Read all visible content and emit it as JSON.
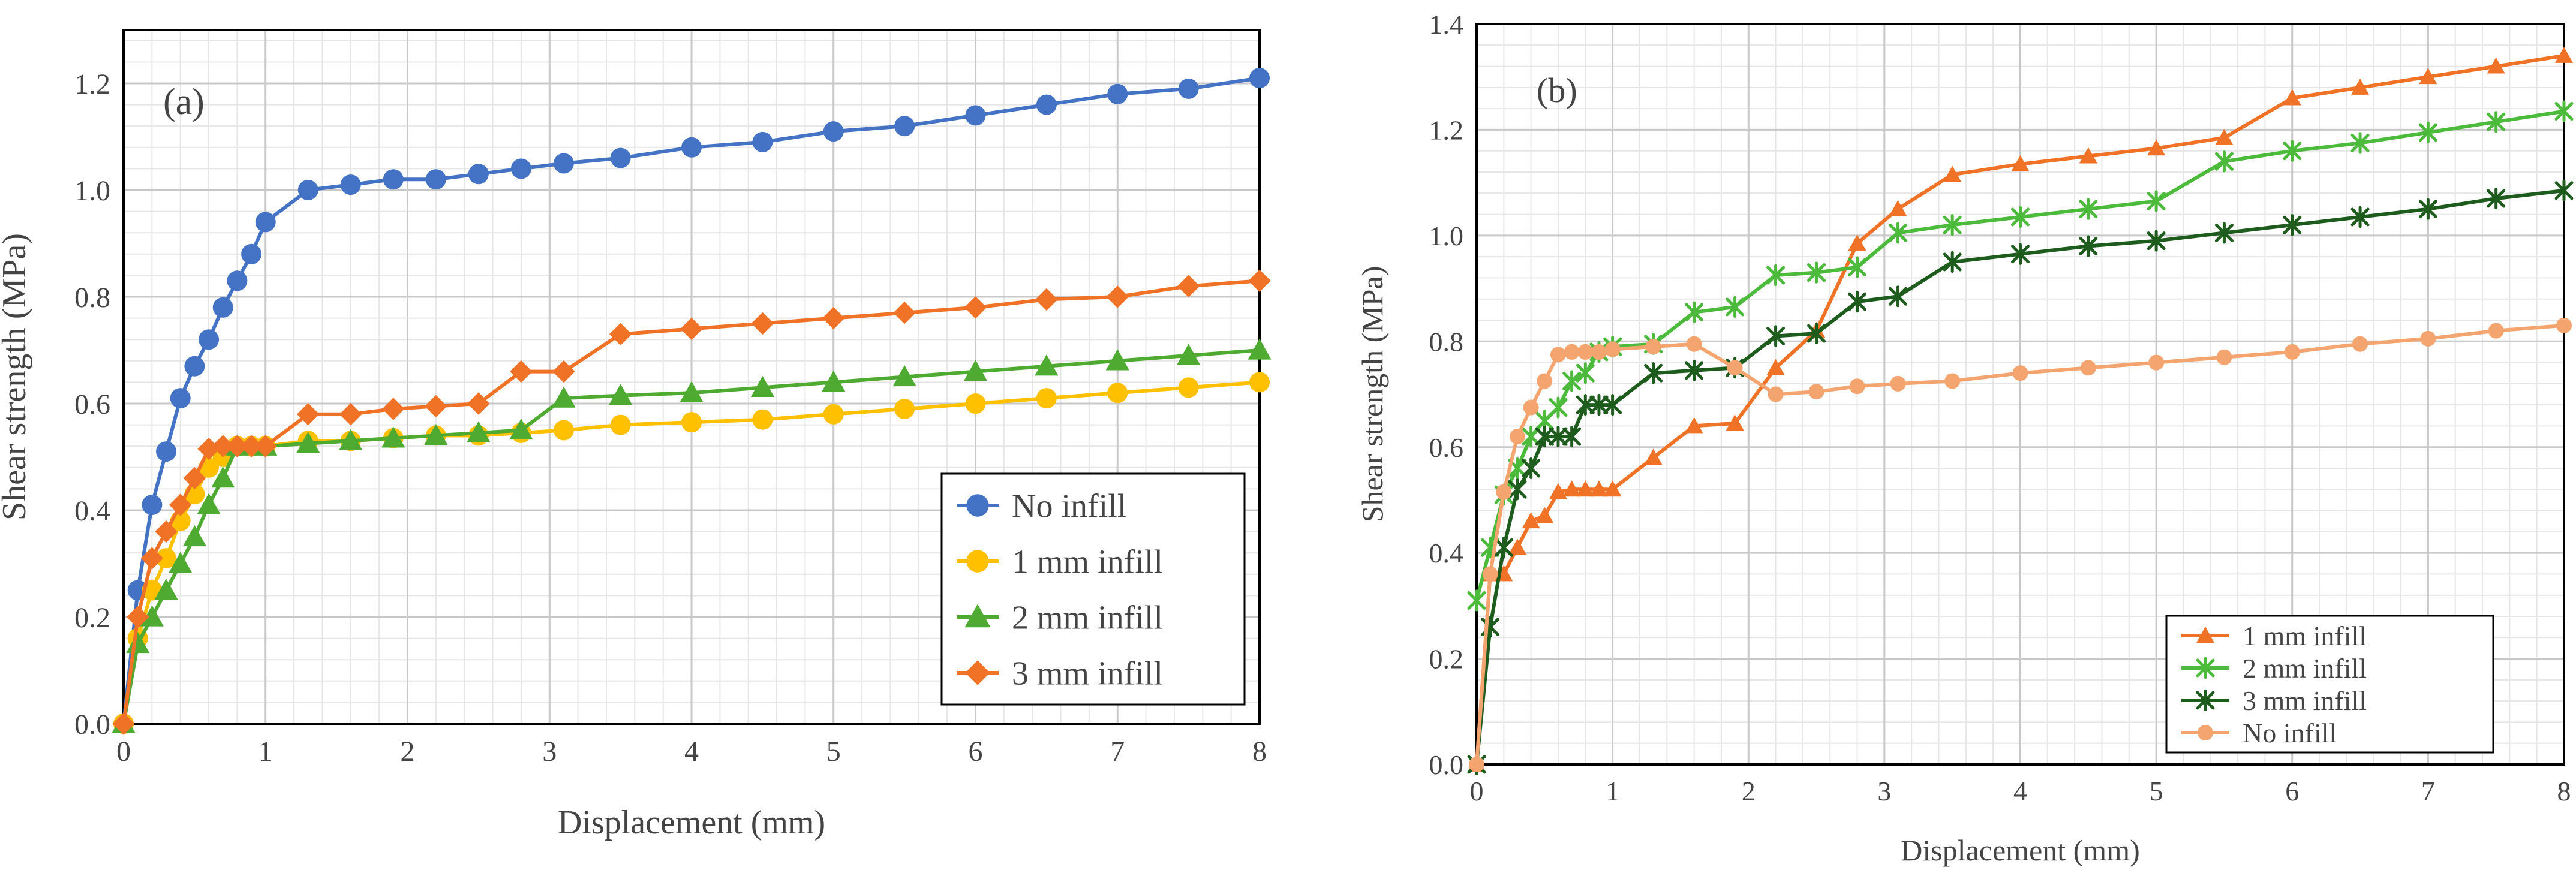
{
  "chart_data": [
    {
      "type": "line",
      "panel_label": "(a)",
      "xlabel": "Displacement (mm)",
      "ylabel": "Shear strength (MPa)",
      "xlim": [
        0,
        8
      ],
      "ylim": [
        0,
        1.3
      ],
      "x_ticks": [
        0,
        1,
        2,
        3,
        4,
        5,
        6,
        7,
        8
      ],
      "x_tick_labels": [
        "0",
        "1",
        "2",
        "3",
        "4",
        "5",
        "6",
        "7",
        "8"
      ],
      "y_ticks": [
        0,
        0.2,
        0.4,
        0.6,
        0.8,
        1.0,
        1.2
      ],
      "y_tick_labels": [
        "0.0",
        "0.2",
        "0.4",
        "0.6",
        "0.8",
        "1.0",
        "1.2"
      ],
      "grid": true,
      "legend_position": "bottom-right",
      "series": [
        {
          "name": "No infill",
          "color": "#4472C4",
          "marker": "circle",
          "x": [
            0,
            0.1,
            0.2,
            0.3,
            0.4,
            0.5,
            0.6,
            0.7,
            0.8,
            0.9,
            1.0,
            1.3,
            1.6,
            1.9,
            2.2,
            2.5,
            2.8,
            3.1,
            3.5,
            4.0,
            4.5,
            5.0,
            5.5,
            6.0,
            6.5,
            7.0,
            7.5,
            8.0
          ],
          "y": [
            0,
            0.25,
            0.41,
            0.51,
            0.61,
            0.67,
            0.72,
            0.78,
            0.83,
            0.88,
            0.94,
            1.0,
            1.01,
            1.02,
            1.02,
            1.03,
            1.04,
            1.05,
            1.06,
            1.08,
            1.09,
            1.11,
            1.12,
            1.14,
            1.16,
            1.18,
            1.19,
            1.21
          ]
        },
        {
          "name": "1 mm infill",
          "color": "#FFC000",
          "marker": "circle",
          "x": [
            0,
            0.1,
            0.2,
            0.3,
            0.4,
            0.5,
            0.6,
            0.7,
            0.8,
            0.9,
            1.0,
            1.3,
            1.6,
            1.9,
            2.2,
            2.5,
            2.8,
            3.1,
            3.5,
            4.0,
            4.5,
            5.0,
            5.5,
            6.0,
            6.5,
            7.0,
            7.5,
            8.0
          ],
          "y": [
            0,
            0.16,
            0.25,
            0.31,
            0.38,
            0.43,
            0.48,
            0.5,
            0.52,
            0.52,
            0.52,
            0.53,
            0.53,
            0.535,
            0.54,
            0.54,
            0.545,
            0.55,
            0.56,
            0.565,
            0.57,
            0.58,
            0.59,
            0.6,
            0.61,
            0.62,
            0.63,
            0.64
          ]
        },
        {
          "name": "2 mm infill",
          "color": "#4EAA30",
          "marker": "triangle",
          "x": [
            0,
            0.1,
            0.2,
            0.3,
            0.4,
            0.5,
            0.6,
            0.7,
            0.8,
            1.0,
            1.3,
            1.6,
            1.9,
            2.2,
            2.5,
            2.8,
            3.1,
            3.5,
            4.0,
            4.5,
            5.0,
            5.5,
            6.0,
            6.5,
            7.0,
            7.5,
            8.0
          ],
          "y": [
            0,
            0.15,
            0.2,
            0.25,
            0.3,
            0.35,
            0.41,
            0.46,
            0.52,
            0.52,
            0.525,
            0.53,
            0.535,
            0.54,
            0.545,
            0.55,
            0.61,
            0.615,
            0.62,
            0.63,
            0.64,
            0.65,
            0.66,
            0.67,
            0.68,
            0.69,
            0.7
          ]
        },
        {
          "name": "3 mm infill",
          "color": "#F07226",
          "marker": "diamond",
          "x": [
            0,
            0.1,
            0.2,
            0.3,
            0.4,
            0.5,
            0.6,
            0.7,
            0.8,
            0.9,
            1.0,
            1.3,
            1.6,
            1.9,
            2.2,
            2.5,
            2.8,
            3.1,
            3.5,
            4.0,
            4.5,
            5.0,
            5.5,
            6.0,
            6.5,
            7.0,
            7.5,
            8.0
          ],
          "y": [
            0,
            0.2,
            0.31,
            0.36,
            0.41,
            0.46,
            0.515,
            0.52,
            0.52,
            0.52,
            0.52,
            0.58,
            0.58,
            0.59,
            0.595,
            0.6,
            0.66,
            0.66,
            0.73,
            0.74,
            0.75,
            0.76,
            0.77,
            0.78,
            0.795,
            0.8,
            0.82,
            0.83
          ]
        }
      ]
    },
    {
      "type": "line",
      "panel_label": "(b)",
      "xlabel": "Displacement (mm)",
      "ylabel": "Shear strength (MPa)",
      "xlim": [
        0,
        8
      ],
      "ylim": [
        0,
        1.4
      ],
      "x_ticks": [
        0,
        1,
        2,
        3,
        4,
        5,
        6,
        7,
        8
      ],
      "x_tick_labels": [
        "0",
        "1",
        "2",
        "3",
        "4",
        "5",
        "6",
        "7",
        "8"
      ],
      "y_ticks": [
        0,
        0.2,
        0.4,
        0.6,
        0.8,
        1.0,
        1.2,
        1.4
      ],
      "y_tick_labels": [
        "0.0",
        "0.2",
        "0.4",
        "0.6",
        "0.8",
        "1.0",
        "1.2",
        "1.4"
      ],
      "grid": true,
      "legend_position": "bottom-right",
      "series": [
        {
          "name": "1 mm infill",
          "color": "#F07226",
          "marker": "triangle",
          "x": [
            0,
            0.1,
            0.2,
            0.3,
            0.4,
            0.5,
            0.6,
            0.7,
            0.8,
            0.9,
            1.0,
            1.3,
            1.6,
            1.9,
            2.2,
            2.5,
            2.8,
            3.1,
            3.5,
            4.0,
            4.5,
            5.0,
            5.5,
            6.0,
            6.5,
            7.0,
            7.5,
            8.0
          ],
          "y": [
            0,
            0.36,
            0.36,
            0.41,
            0.46,
            0.47,
            0.515,
            0.52,
            0.52,
            0.52,
            0.52,
            0.58,
            0.64,
            0.645,
            0.75,
            0.82,
            0.985,
            1.05,
            1.115,
            1.135,
            1.15,
            1.165,
            1.185,
            1.26,
            1.28,
            1.3,
            1.32,
            1.34
          ]
        },
        {
          "name": "2 mm infill",
          "color": "#4CBB3B",
          "marker": "asterisk",
          "x": [
            0,
            0.1,
            0.2,
            0.3,
            0.4,
            0.5,
            0.6,
            0.7,
            0.8,
            0.9,
            1.0,
            1.3,
            1.6,
            1.9,
            2.2,
            2.5,
            2.8,
            3.1,
            3.5,
            4.0,
            4.5,
            5.0,
            5.5,
            6.0,
            6.5,
            7.0,
            7.5,
            8.0
          ],
          "y": [
            0.31,
            0.41,
            0.51,
            0.56,
            0.62,
            0.65,
            0.675,
            0.725,
            0.74,
            0.78,
            0.79,
            0.795,
            0.855,
            0.865,
            0.925,
            0.93,
            0.94,
            1.005,
            1.02,
            1.035,
            1.05,
            1.065,
            1.14,
            1.16,
            1.175,
            1.195,
            1.215,
            1.235
          ]
        },
        {
          "name": "3 mm infill",
          "color": "#1E5C1E",
          "marker": "asterisk",
          "x": [
            0,
            0.1,
            0.2,
            0.3,
            0.4,
            0.5,
            0.6,
            0.7,
            0.8,
            0.9,
            1.0,
            1.3,
            1.6,
            1.9,
            2.2,
            2.5,
            2.8,
            3.1,
            3.5,
            4.0,
            4.5,
            5.0,
            5.5,
            6.0,
            6.5,
            7.0,
            7.5,
            8.0
          ],
          "y": [
            0,
            0.26,
            0.41,
            0.52,
            0.56,
            0.62,
            0.62,
            0.62,
            0.68,
            0.68,
            0.68,
            0.74,
            0.745,
            0.75,
            0.81,
            0.815,
            0.875,
            0.885,
            0.95,
            0.965,
            0.98,
            0.99,
            1.005,
            1.02,
            1.035,
            1.05,
            1.07,
            1.085
          ]
        },
        {
          "name": "No infill",
          "color": "#F4A56F",
          "marker": "circle",
          "x": [
            0,
            0.1,
            0.2,
            0.3,
            0.4,
            0.5,
            0.6,
            0.7,
            0.8,
            0.9,
            1.0,
            1.3,
            1.6,
            1.9,
            2.2,
            2.5,
            2.8,
            3.1,
            3.5,
            4.0,
            4.5,
            5.0,
            5.5,
            6.0,
            6.5,
            7.0,
            7.5,
            8.0
          ],
          "y": [
            0,
            0.36,
            0.515,
            0.62,
            0.675,
            0.725,
            0.775,
            0.78,
            0.78,
            0.78,
            0.785,
            0.79,
            0.795,
            0.75,
            0.7,
            0.705,
            0.715,
            0.72,
            0.725,
            0.74,
            0.75,
            0.76,
            0.77,
            0.78,
            0.795,
            0.805,
            0.82,
            0.83
          ]
        }
      ]
    }
  ]
}
